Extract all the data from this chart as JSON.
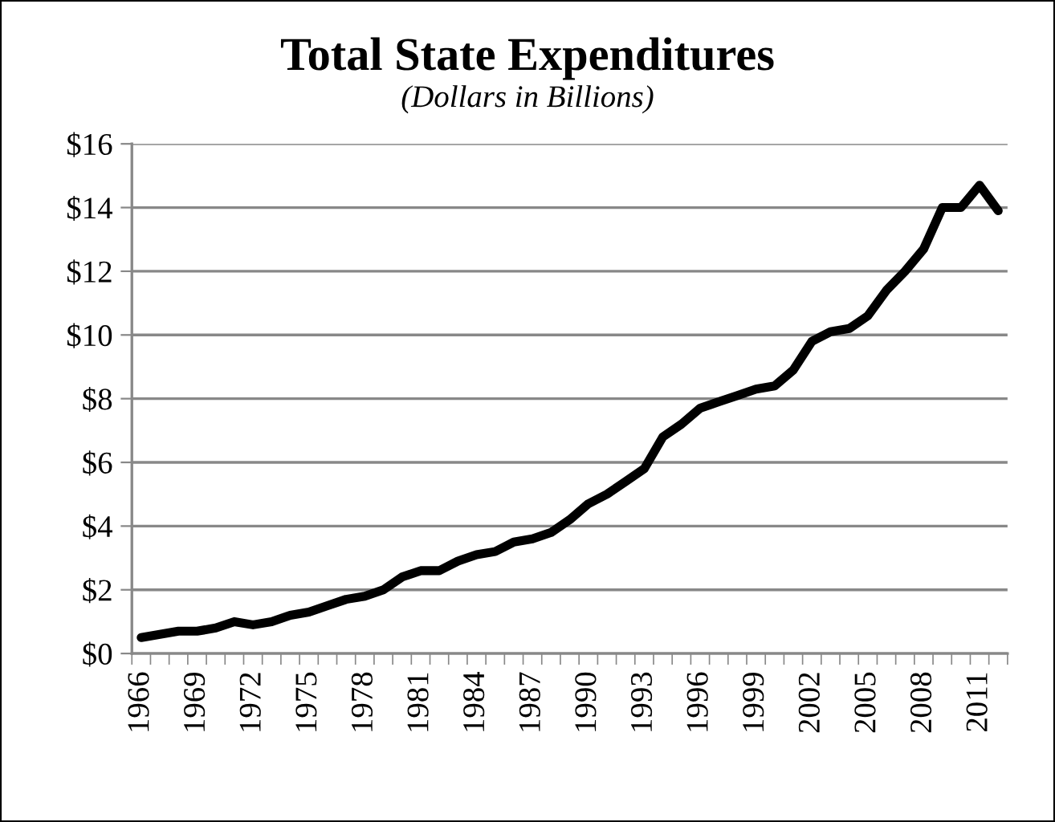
{
  "chart_data": {
    "type": "line",
    "title": "Total State Expenditures",
    "subtitle": "(Dollars in Billions)",
    "categories": [
      "1966",
      null,
      null,
      "1969",
      null,
      null,
      "1972",
      null,
      null,
      "1975",
      null,
      null,
      "1978",
      null,
      null,
      "1981",
      null,
      null,
      "1984",
      null,
      null,
      "1987",
      null,
      null,
      "1990",
      null,
      null,
      "1993",
      null,
      null,
      "1996",
      null,
      null,
      "1999",
      null,
      null,
      "2002",
      null,
      null,
      "2005",
      null,
      null,
      "2008",
      null,
      null,
      "2011",
      null
    ],
    "series": [
      {
        "color": "#000000",
        "values": [
          0.5,
          0.6,
          0.7,
          0.7,
          0.8,
          1.0,
          0.9,
          1.0,
          1.2,
          1.3,
          1.5,
          1.7,
          1.8,
          2.0,
          2.4,
          2.6,
          2.6,
          2.9,
          3.1,
          3.2,
          3.5,
          3.6,
          3.8,
          4.2,
          4.7,
          5.0,
          5.4,
          5.8,
          6.8,
          7.2,
          7.7,
          7.9,
          8.1,
          8.3,
          8.4,
          8.9,
          9.8,
          10.1,
          10.2,
          10.6,
          11.4,
          12.0,
          12.7,
          14.0,
          14.0,
          14.7,
          13.9
        ]
      }
    ],
    "ylim": [
      0,
      16
    ],
    "yticks": [
      {
        "value": 0,
        "label": "$0"
      },
      {
        "value": 2,
        "label": "$2"
      },
      {
        "value": 4,
        "label": "$4"
      },
      {
        "value": 6,
        "label": "$6"
      },
      {
        "value": 8,
        "label": "$8"
      },
      {
        "value": 10,
        "label": "$10"
      },
      {
        "value": 12,
        "label": "$12"
      },
      {
        "value": 14,
        "label": "$14"
      },
      {
        "value": 16,
        "label": "$16"
      }
    ],
    "grid": "y",
    "marker": "none",
    "line_style": "solid"
  }
}
